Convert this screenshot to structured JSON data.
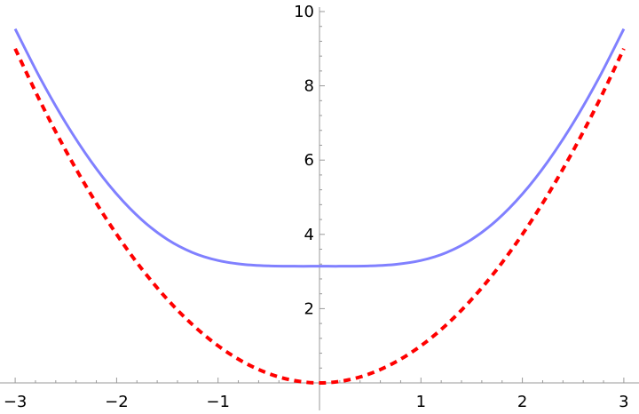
{
  "chart_data": {
    "type": "line",
    "title": "",
    "xlabel": "",
    "ylabel": "",
    "xlim": [
      -3,
      3
    ],
    "ylim": [
      0,
      10
    ],
    "grid": false,
    "x_ticks": [
      "-3",
      "-2",
      "-1",
      "1",
      "2",
      "3"
    ],
    "x_tick_values": [
      -3,
      -2,
      -1,
      1,
      2,
      3
    ],
    "y_ticks": [
      "2",
      "4",
      "6",
      "8",
      "10"
    ],
    "y_tick_values": [
      2,
      4,
      6,
      8,
      10
    ],
    "x": [
      -3,
      -2.75,
      -2.5,
      -2.25,
      -2,
      -1.75,
      -1.5,
      -1.25,
      -1,
      -0.75,
      -0.5,
      -0.25,
      0,
      0.25,
      0.5,
      0.75,
      1,
      1.25,
      1.5,
      1.75,
      2,
      2.25,
      2.5,
      2.75,
      3
    ],
    "series": [
      {
        "color": "#8080ff",
        "style": "solid",
        "values": [
          9.533,
          8.189,
          6.995,
          5.958,
          5.086,
          4.387,
          3.864,
          3.509,
          3.297,
          3.192,
          3.152,
          3.142,
          3.142,
          3.142,
          3.152,
          3.192,
          3.297,
          3.509,
          3.864,
          4.387,
          5.086,
          5.958,
          6.995,
          8.189,
          9.533
        ]
      },
      {
        "color": "#ff0000",
        "style": "dashed",
        "values": [
          9,
          7.5625,
          6.25,
          5.0625,
          4,
          3.0625,
          2.25,
          1.5625,
          1,
          0.5625,
          0.25,
          0.0625,
          0,
          0.0625,
          0.25,
          0.5625,
          1,
          1.5625,
          2.25,
          3.0625,
          4,
          5.0625,
          6.25,
          7.5625,
          9
        ]
      }
    ]
  }
}
